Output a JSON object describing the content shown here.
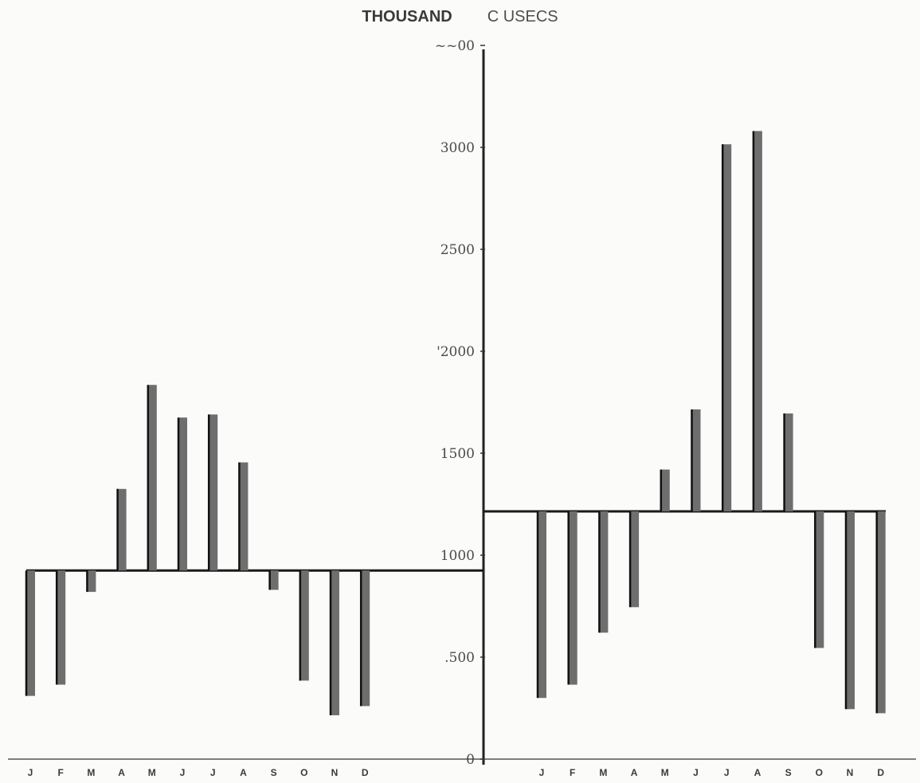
{
  "title": {
    "bold_part": "THOUSAND",
    "normal_part": "C USECS"
  },
  "chart_data": {
    "type": "bar",
    "y_axis": {
      "min": 0,
      "max": 3500,
      "tick_labels": [
        {
          "value": 0,
          "label": "0"
        },
        {
          "value": 500,
          "label": ".500"
        },
        {
          "value": 1000,
          "label": "1000"
        },
        {
          "value": 1500,
          "label": "1500"
        },
        {
          "value": 2000,
          "label": "'2000"
        },
        {
          "value": 2500,
          "label": "2500"
        },
        {
          "value": 3000,
          "label": "3000"
        },
        {
          "value": 3500,
          "label": "~~00"
        }
      ]
    },
    "panels": [
      {
        "side": "left",
        "baseline": 925,
        "categories": [
          "J",
          "F",
          "M",
          "A",
          "M",
          "J",
          "J",
          "A",
          "S",
          "O",
          "N",
          "D"
        ],
        "values": [
          310,
          365,
          820,
          1325,
          1835,
          1675,
          1690,
          1455,
          830,
          385,
          215,
          260
        ]
      },
      {
        "side": "right",
        "baseline": 1215,
        "categories": [
          "J",
          "F",
          "M",
          "A",
          "M",
          "J",
          "J",
          "A",
          "S",
          "O",
          "N",
          "D"
        ],
        "values": [
          300,
          365,
          620,
          745,
          1420,
          1715,
          3015,
          3080,
          1695,
          545,
          245,
          225
        ]
      }
    ]
  }
}
